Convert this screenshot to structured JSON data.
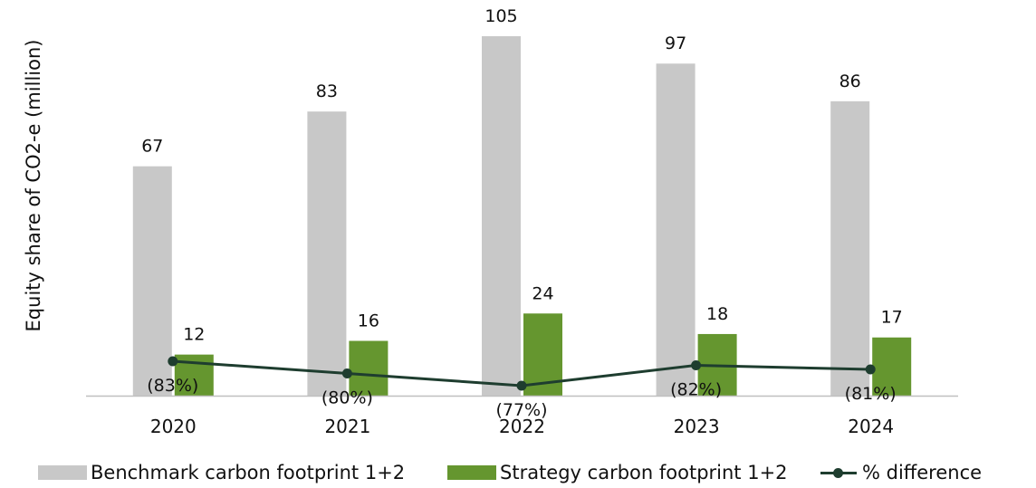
{
  "colors": {
    "benchmark": "#c8c8c8",
    "strategy": "#65962f",
    "difference": "#1e3d2f",
    "axis": "#c0c0c0"
  },
  "legend": {
    "benchmark": "Benchmark carbon footprint 1+2",
    "strategy": "Strategy carbon footprint 1+2",
    "difference": "% difference"
  },
  "chart_data": {
    "type": "bar",
    "ylabel": "Equity share of CO2-e (million)",
    "categories": [
      "2020",
      "2021",
      "2022",
      "2023",
      "2024"
    ],
    "ylim": [
      0,
      105
    ],
    "grid": false,
    "legend_position": "bottom",
    "series": [
      {
        "name": "Benchmark carbon footprint 1+2",
        "values": [
          67,
          83,
          105,
          97,
          86
        ],
        "labels": [
          "67",
          "83",
          "105",
          "97",
          "86"
        ]
      },
      {
        "name": "Strategy carbon footprint 1+2",
        "values": [
          12,
          16,
          24,
          18,
          17
        ],
        "labels": [
          "12",
          "16",
          "24",
          "18",
          "17"
        ]
      },
      {
        "name": "% difference",
        "type": "line",
        "values": [
          -83,
          -80,
          -77,
          -82,
          -81
        ],
        "labels": [
          "(83%)",
          "(80%)",
          "(77%)",
          "(82%)",
          "(81%)"
        ]
      }
    ]
  }
}
